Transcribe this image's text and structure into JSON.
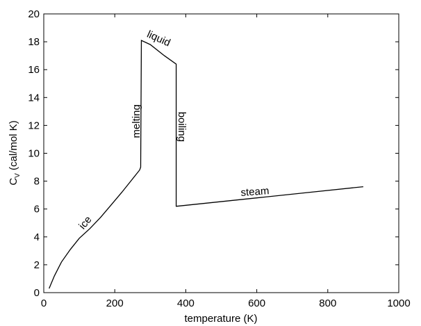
{
  "chart_data": {
    "type": "line",
    "xlabel": "temperature (K)",
    "ylabel_main": "C",
    "ylabel_sub": "V",
    "ylabel_rest": " (cal/mol K)",
    "xlim": [
      0,
      1000
    ],
    "ylim": [
      0,
      20
    ],
    "grid": false,
    "xticks": [
      0,
      200,
      400,
      600,
      800,
      1000
    ],
    "xtick_labels": [
      "0",
      "200",
      "400",
      "600",
      "800",
      "1000"
    ],
    "yticks": [
      0,
      2,
      4,
      6,
      8,
      10,
      12,
      14,
      16,
      18,
      20
    ],
    "ytick_labels": [
      "0",
      "2",
      "4",
      "6",
      "8",
      "10",
      "12",
      "14",
      "16",
      "18",
      "20"
    ],
    "line_color": "#000000",
    "series": [
      {
        "x": [
          15,
          30,
          50,
          75,
          100,
          130,
          160,
          190,
          220,
          245,
          270,
          273,
          275,
          300,
          340,
          373,
          373,
          375,
          450,
          600,
          750,
          900
        ],
        "y": [
          0.3,
          1.2,
          2.2,
          3.1,
          3.9,
          4.6,
          5.4,
          6.3,
          7.2,
          8.0,
          8.8,
          9.0,
          18.1,
          17.8,
          17.0,
          16.4,
          6.2,
          6.2,
          6.4,
          6.8,
          7.2,
          7.6
        ]
      }
    ],
    "annotations": [
      {
        "text": "ice",
        "x": 118,
        "y": 5.0,
        "angle": -50
      },
      {
        "text": "melting",
        "x": 262,
        "y": 12.3,
        "angle": -90
      },
      {
        "text": "liquid",
        "x": 323,
        "y": 18.2,
        "angle": 24
      },
      {
        "text": "boiling",
        "x": 387,
        "y": 11.9,
        "angle": 90
      },
      {
        "text": "steam",
        "x": 595,
        "y": 7.2,
        "angle": -4
      }
    ]
  }
}
